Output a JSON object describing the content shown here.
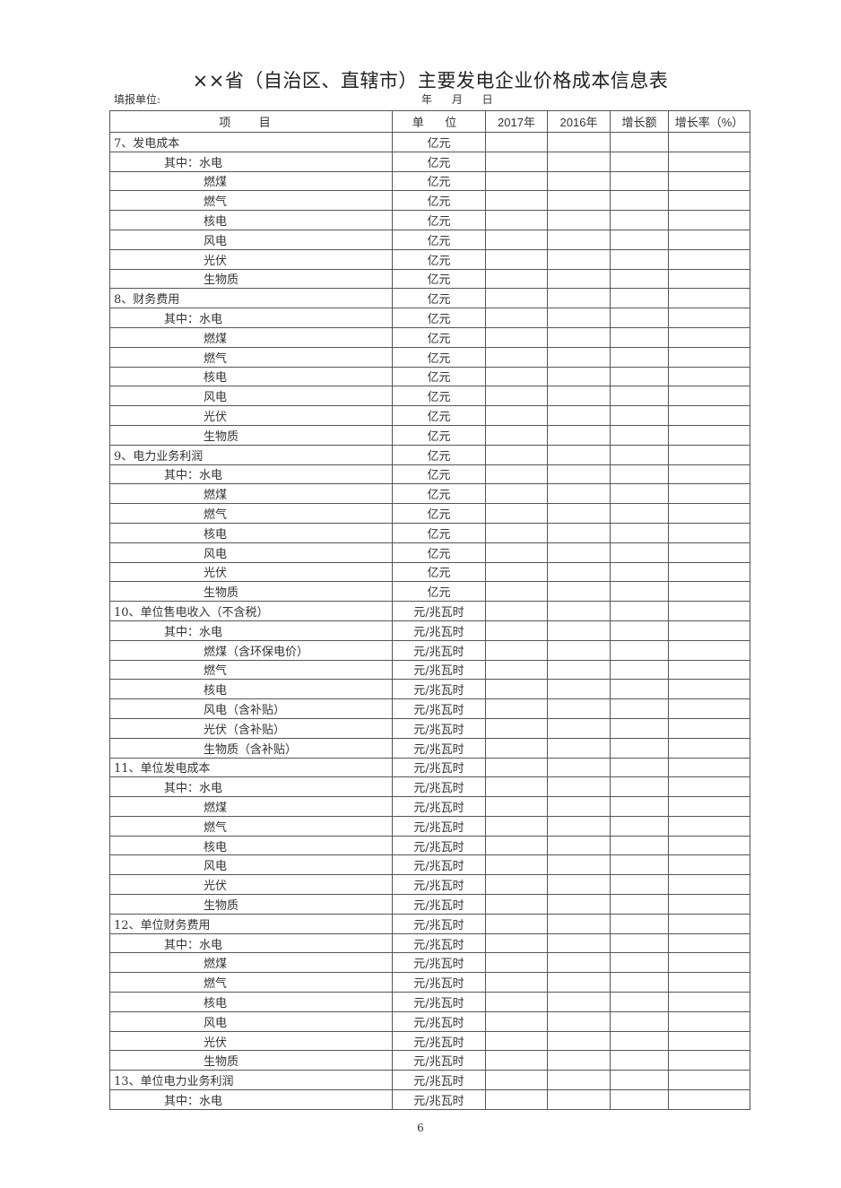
{
  "title": "××省（自治区、直辖市）主要发电企业价格成本信息表",
  "fill_unit_label": "填报单位:",
  "date_label": "年 月 日",
  "columns": [
    "项 目",
    "单 位",
    "2017年",
    "2016年",
    "增长额",
    "增长率（%）"
  ],
  "rows": [
    {
      "item": "7、发电成本",
      "unit": "亿元",
      "level": 0
    },
    {
      "item": "其中：水电",
      "unit": "亿元",
      "level": 1
    },
    {
      "item": "燃煤",
      "unit": "亿元",
      "level": 2
    },
    {
      "item": "燃气",
      "unit": "亿元",
      "level": 2
    },
    {
      "item": "核电",
      "unit": "亿元",
      "level": 2
    },
    {
      "item": "风电",
      "unit": "亿元",
      "level": 2
    },
    {
      "item": "光伏",
      "unit": "亿元",
      "level": 2
    },
    {
      "item": "生物质",
      "unit": "亿元",
      "level": 2
    },
    {
      "item": "8、财务费用",
      "unit": "亿元",
      "level": 0
    },
    {
      "item": "其中：水电",
      "unit": "亿元",
      "level": 1
    },
    {
      "item": "燃煤",
      "unit": "亿元",
      "level": 2
    },
    {
      "item": "燃气",
      "unit": "亿元",
      "level": 2
    },
    {
      "item": "核电",
      "unit": "亿元",
      "level": 2
    },
    {
      "item": "风电",
      "unit": "亿元",
      "level": 2
    },
    {
      "item": "光伏",
      "unit": "亿元",
      "level": 2
    },
    {
      "item": "生物质",
      "unit": "亿元",
      "level": 2
    },
    {
      "item": "9、电力业务利润",
      "unit": "亿元",
      "level": 0
    },
    {
      "item": "其中：水电",
      "unit": "亿元",
      "level": 1
    },
    {
      "item": "燃煤",
      "unit": "亿元",
      "level": 2
    },
    {
      "item": "燃气",
      "unit": "亿元",
      "level": 2
    },
    {
      "item": "核电",
      "unit": "亿元",
      "level": 2
    },
    {
      "item": "风电",
      "unit": "亿元",
      "level": 2
    },
    {
      "item": "光伏",
      "unit": "亿元",
      "level": 2
    },
    {
      "item": "生物质",
      "unit": "亿元",
      "level": 2
    },
    {
      "item": "10、单位售电收入（不含税）",
      "unit": "元/兆瓦时",
      "level": 0
    },
    {
      "item": "其中：水电",
      "unit": "元/兆瓦时",
      "level": 1
    },
    {
      "item": "燃煤（含环保电价）",
      "unit": "元/兆瓦时",
      "level": 2
    },
    {
      "item": "燃气",
      "unit": "元/兆瓦时",
      "level": 2
    },
    {
      "item": "核电",
      "unit": "元/兆瓦时",
      "level": 2
    },
    {
      "item": "风电（含补贴）",
      "unit": "元/兆瓦时",
      "level": 2
    },
    {
      "item": "光伏（含补贴）",
      "unit": "元/兆瓦时",
      "level": 2
    },
    {
      "item": "生物质（含补贴）",
      "unit": "元/兆瓦时",
      "level": 2
    },
    {
      "item": "11、单位发电成本",
      "unit": "元/兆瓦时",
      "level": 0
    },
    {
      "item": "其中：水电",
      "unit": "元/兆瓦时",
      "level": 1
    },
    {
      "item": "燃煤",
      "unit": "元/兆瓦时",
      "level": 2
    },
    {
      "item": "燃气",
      "unit": "元/兆瓦时",
      "level": 2
    },
    {
      "item": "核电",
      "unit": "元/兆瓦时",
      "level": 2
    },
    {
      "item": "风电",
      "unit": "元/兆瓦时",
      "level": 2
    },
    {
      "item": "光伏",
      "unit": "元/兆瓦时",
      "level": 2
    },
    {
      "item": "生物质",
      "unit": "元/兆瓦时",
      "level": 2
    },
    {
      "item": "12、单位财务费用",
      "unit": "元/兆瓦时",
      "level": 0
    },
    {
      "item": "其中：水电",
      "unit": "元/兆瓦时",
      "level": 1
    },
    {
      "item": "燃煤",
      "unit": "元/兆瓦时",
      "level": 2
    },
    {
      "item": "燃气",
      "unit": "元/兆瓦时",
      "level": 2
    },
    {
      "item": "核电",
      "unit": "元/兆瓦时",
      "level": 2
    },
    {
      "item": "风电",
      "unit": "元/兆瓦时",
      "level": 2
    },
    {
      "item": "光伏",
      "unit": "元/兆瓦时",
      "level": 2
    },
    {
      "item": "生物质",
      "unit": "元/兆瓦时",
      "level": 2
    },
    {
      "item": "13、单位电力业务利润",
      "unit": "元/兆瓦时",
      "level": 0
    },
    {
      "item": "其中：水电",
      "unit": "元/兆瓦时",
      "level": 1
    }
  ],
  "page_number": "6"
}
